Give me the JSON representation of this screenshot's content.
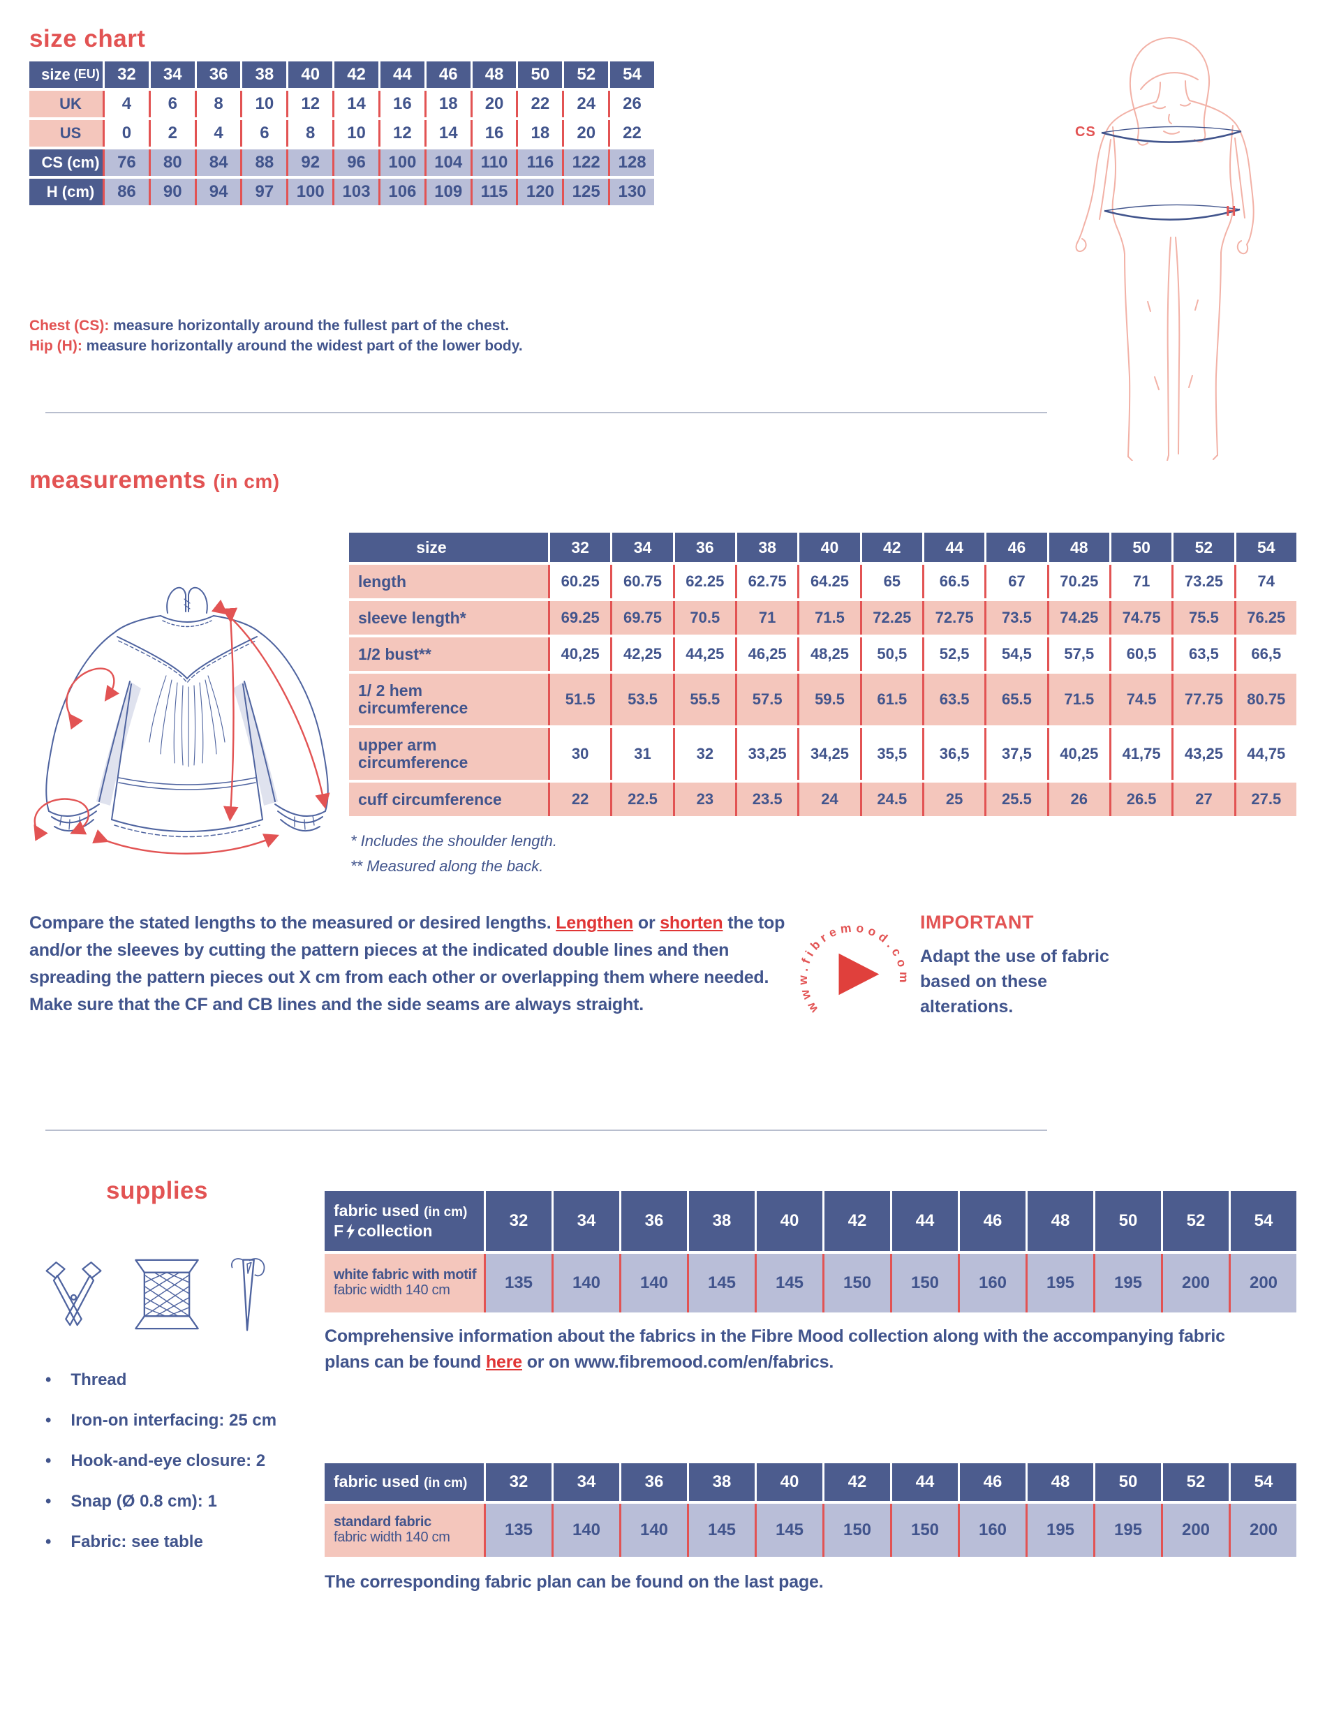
{
  "palette": {
    "header_blue": "#4c5c8e",
    "text_blue": "#41548c",
    "pink": "#f4c6bc",
    "lavender": "#b9bed8",
    "red": "#e25353",
    "link_red": "#e03535"
  },
  "size_chart": {
    "title": "size chart",
    "table": {
      "header_label_main": "size",
      "header_label_sub": "(EU)",
      "sizes": [
        "32",
        "34",
        "36",
        "38",
        "40",
        "42",
        "44",
        "46",
        "48",
        "50",
        "52",
        "54"
      ],
      "rows": [
        {
          "label": "UK",
          "values": [
            "4",
            "6",
            "8",
            "10",
            "12",
            "14",
            "16",
            "18",
            "20",
            "22",
            "24",
            "26"
          ]
        },
        {
          "label": "US",
          "values": [
            "0",
            "2",
            "4",
            "6",
            "8",
            "10",
            "12",
            "14",
            "16",
            "18",
            "20",
            "22"
          ]
        },
        {
          "label": "CS (cm)",
          "values": [
            "76",
            "80",
            "84",
            "88",
            "92",
            "96",
            "100",
            "104",
            "110",
            "116",
            "122",
            "128"
          ]
        },
        {
          "label": "H (cm)",
          "values": [
            "86",
            "90",
            "94",
            "97",
            "100",
            "103",
            "106",
            "109",
            "115",
            "120",
            "125",
            "130"
          ]
        }
      ]
    },
    "notes": {
      "chest_lead": "Chest (CS):",
      "chest_text": " measure horizontally around the fullest part of the chest.",
      "hip_lead": "Hip (H):",
      "hip_text": " measure horizontally around the widest part of the lower body."
    },
    "figure_labels": {
      "chest": "CS",
      "hip": "H"
    }
  },
  "measurements": {
    "title": "measurements",
    "title_suffix": "(in cm)",
    "table": {
      "header_label": "size",
      "sizes": [
        "32",
        "34",
        "36",
        "38",
        "40",
        "42",
        "44",
        "46",
        "48",
        "50",
        "52",
        "54"
      ],
      "rows": [
        {
          "label": "length",
          "values": [
            "60.25",
            "60.75",
            "62.25",
            "62.75",
            "64.25",
            "65",
            "66.5",
            "67",
            "70.25",
            "71",
            "73.25",
            "74"
          ]
        },
        {
          "label": "sleeve length*",
          "values": [
            "69.25",
            "69.75",
            "70.5",
            "71",
            "71.5",
            "72.25",
            "72.75",
            "73.5",
            "74.25",
            "74.75",
            "75.5",
            "76.25"
          ]
        },
        {
          "label": "1/2 bust**",
          "values": [
            "40,25",
            "42,25",
            "44,25",
            "46,25",
            "48,25",
            "50,5",
            "52,5",
            "54,5",
            "57,5",
            "60,5",
            "63,5",
            "66,5"
          ]
        },
        {
          "label": "1/ 2 hem circumference",
          "values": [
            "51.5",
            "53.5",
            "55.5",
            "57.5",
            "59.5",
            "61.5",
            "63.5",
            "65.5",
            "71.5",
            "74.5",
            "77.75",
            "80.75"
          ]
        },
        {
          "label": "upper arm circumference",
          "values": [
            "30",
            "31",
            "32",
            "33,25",
            "34,25",
            "35,5",
            "36,5",
            "37,5",
            "40,25",
            "41,75",
            "43,25",
            "44,75"
          ]
        },
        {
          "label": "cuff circumference",
          "values": [
            "22",
            "22.5",
            "23",
            "23.5",
            "24",
            "24.5",
            "25",
            "25.5",
            "26",
            "26.5",
            "27",
            "27.5"
          ]
        }
      ]
    },
    "footnotes": [
      "* Includes the shoulder length.",
      "** Measured along the back."
    ]
  },
  "alteration_note": {
    "seg1": "Compare the stated lengths to the measured or desired lengths. ",
    "link1": "Lengthen",
    "seg2": " or ",
    "link2": "shorten",
    "seg3": " the top and/or the sleeves by cutting the pattern pieces at the indicated double lines and then spreading the pattern pieces out X cm from each other or overlapping them where needed. Make sure that the CF and CB lines and the side seams are always straight."
  },
  "logo": {
    "circle_text": "www.fibremood.com"
  },
  "important": {
    "title": "IMPORTANT",
    "text": "Adapt the use of fabric based on these alterations."
  },
  "supplies": {
    "title": "supplies",
    "items": [
      "Thread",
      "Iron-on interfacing: 25 cm",
      "Hook-and-eye closure: 2",
      "Snap (Ø 0.8 cm): 1",
      "Fabric: see table"
    ]
  },
  "fabric_tables": [
    {
      "header_main": "fabric used",
      "header_sub": "(in cm)",
      "brand_prefix": "F",
      "brand_label": "collection",
      "row_label_line1": "white fabric with motif",
      "row_label_line2": "fabric width 140 cm",
      "sizes": [
        "32",
        "34",
        "36",
        "38",
        "40",
        "42",
        "44",
        "46",
        "48",
        "50",
        "52",
        "54"
      ],
      "values": [
        "135",
        "140",
        "140",
        "145",
        "145",
        "150",
        "150",
        "160",
        "195",
        "195",
        "200",
        "200"
      ]
    },
    {
      "header_main": "fabric used",
      "header_sub": "(in cm)",
      "row_label_line1": "standard fabric",
      "row_label_line2": "fabric width 140 cm",
      "sizes": [
        "32",
        "34",
        "36",
        "38",
        "40",
        "42",
        "44",
        "46",
        "48",
        "50",
        "52",
        "54"
      ],
      "values": [
        "135",
        "140",
        "140",
        "145",
        "145",
        "150",
        "150",
        "160",
        "195",
        "195",
        "200",
        "200"
      ]
    }
  ],
  "fabric_info": {
    "pre": "Comprehensive information about the fabrics in the Fibre Mood collection along with the accompanying fabric plans can be found ",
    "link": "here",
    "post": " or on www.fibremood.com/en/fabrics."
  },
  "fabric_plan_note": "The corresponding fabric plan can be found on the last page."
}
